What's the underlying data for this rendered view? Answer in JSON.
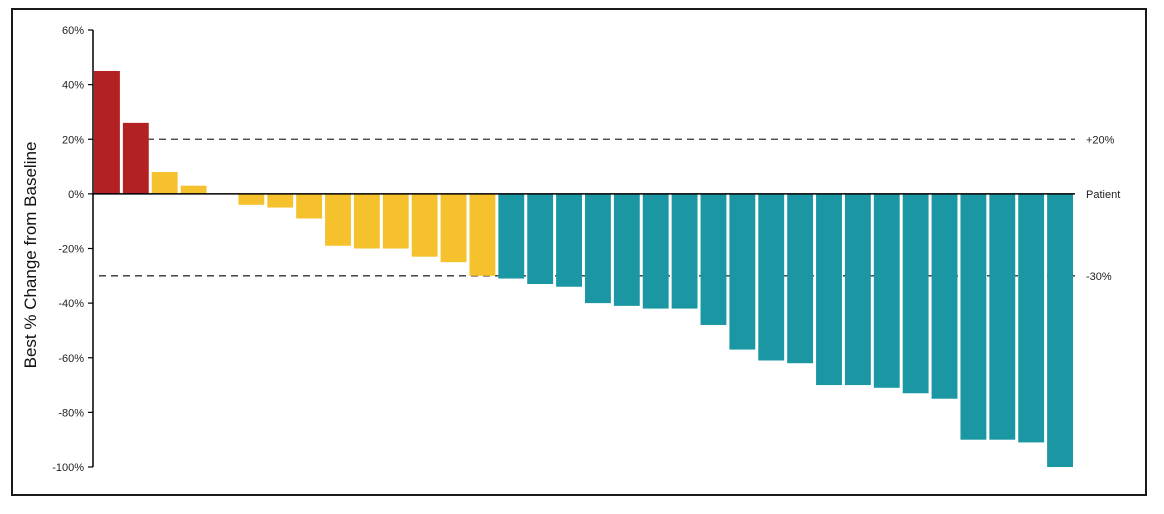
{
  "chart_data": {
    "type": "bar",
    "ylabel": "Best %  Change from Baseline",
    "ylim": [
      -100,
      60
    ],
    "yticks": [
      60,
      40,
      20,
      0,
      -20,
      -40,
      -60,
      -80,
      -100
    ],
    "ytick_labels": [
      "60%",
      "40%",
      "20%",
      "0%",
      "-20%",
      "-40%",
      "-60%",
      "-80%",
      "-100%"
    ],
    "baseline_label": "Patient",
    "reference_lines": [
      {
        "value": 20,
        "label": "+20%"
      },
      {
        "value": -30,
        "label": "-30%"
      }
    ],
    "colors": {
      "progression": "#b22222",
      "stable": "#f5c22e",
      "response": "#1a97a3",
      "axis": "#000000",
      "reference": "#333333"
    },
    "values": [
      45,
      26,
      8,
      3,
      0,
      -4,
      -5,
      -9,
      -19,
      -20,
      -20,
      -23,
      -25,
      -30,
      -31,
      -33,
      -34,
      -40,
      -41,
      -42,
      -42,
      -48,
      -57,
      -61,
      -62,
      -70,
      -70,
      -71,
      -73,
      -75,
      -90,
      -90,
      -91,
      -100
    ],
    "groups": [
      "progression",
      "progression",
      "stable",
      "stable",
      "stable",
      "stable",
      "stable",
      "stable",
      "stable",
      "stable",
      "stable",
      "stable",
      "stable",
      "stable",
      "response",
      "response",
      "response",
      "response",
      "response",
      "response",
      "response",
      "response",
      "response",
      "response",
      "response",
      "response",
      "response",
      "response",
      "response",
      "response",
      "response",
      "response",
      "response",
      "response"
    ]
  }
}
